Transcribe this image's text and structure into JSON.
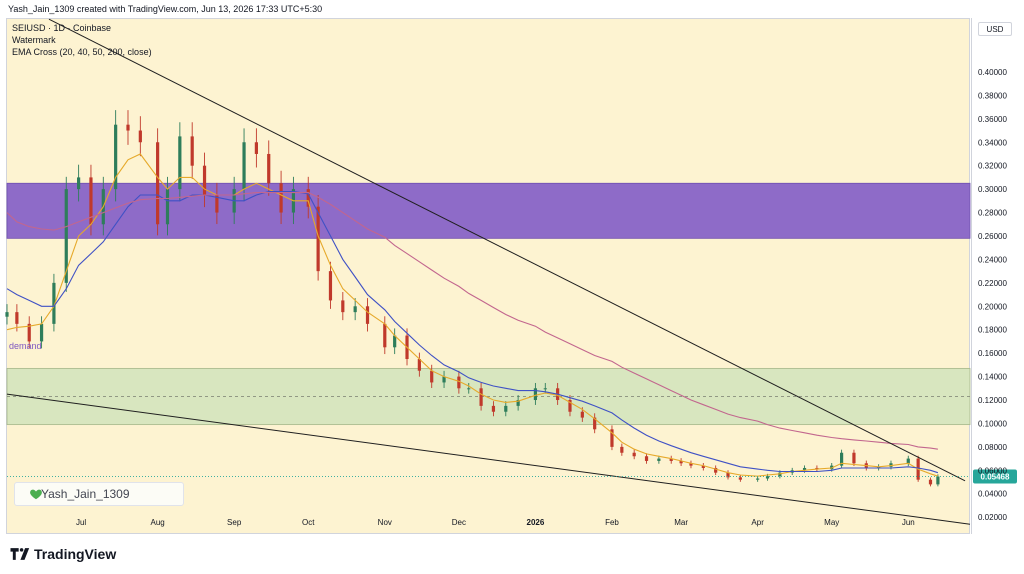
{
  "header": {
    "created_line": "Yash_Jain_1309 created with TradingView.com, Jun 13, 2026 17:33 UTC+5:30"
  },
  "legend": {
    "symbol_line": "SEIUSD · 1D · Coinbase",
    "watermark_label": "Watermark",
    "indicator_line": "EMA Cross (20, 40, 50, 200, close)"
  },
  "price_axis": {
    "currency": "USD",
    "last_price": "0.05468"
  },
  "zones": {
    "demand_label": "demand"
  },
  "watermark": {
    "text": "Yash_Jain_1309",
    "icon": "green-heart-icon"
  },
  "footer": {
    "brand": "TradingView",
    "brand_icon": "tradingview-logo-icon"
  },
  "colors": {
    "background": "#fdf3d1",
    "supply_zone": "#8e6bc8",
    "demand_zone": "#d8e6bf",
    "candle_up": "#2e7d5b",
    "candle_down": "#c0392b",
    "ema_fast": "#e6a92a",
    "ema_mid": "#3f51c5",
    "ema_slow": "#c2668e",
    "last_price_badge": "#26a69a"
  },
  "chart_data": {
    "type": "candlestick",
    "title": "SEIUSD · 1D · Coinbase",
    "y_ticks": [
      "0.40000",
      "0.38000",
      "0.36000",
      "0.34000",
      "0.32000",
      "0.30000",
      "0.28000",
      "0.26000",
      "0.24000",
      "0.22000",
      "0.20000",
      "0.18000",
      "0.16000",
      "0.14000",
      "0.12000",
      "0.10000",
      "0.08000",
      "0.06000",
      "0.04000",
      "0.02000"
    ],
    "y_tick_values": [
      0.4,
      0.38,
      0.36,
      0.34,
      0.32,
      0.3,
      0.28,
      0.26,
      0.24,
      0.22,
      0.2,
      0.18,
      0.16,
      0.14,
      0.12,
      0.1,
      0.08,
      0.06,
      0.04,
      0.02
    ],
    "ylim": [
      0.0065,
      0.4452
    ],
    "x_ticks": [
      "Jul",
      "Aug",
      "Sep",
      "Oct",
      "Nov",
      "Dec",
      "2026",
      "Feb",
      "Mar",
      "Apr",
      "May",
      "Jun"
    ],
    "x_tick_dates": [
      "2025-07-01",
      "2025-08-01",
      "2025-09-01",
      "2025-10-01",
      "2025-11-01",
      "2025-12-01",
      "2026-01-01",
      "2026-02-01",
      "2026-03-01",
      "2026-04-01",
      "2026-05-01",
      "2026-06-01"
    ],
    "x_range": [
      "2025-06-01",
      "2026-06-26"
    ],
    "zones": [
      {
        "name": "supply",
        "from": 0.258,
        "to": 0.305
      },
      {
        "name": "demand",
        "from": 0.099,
        "to": 0.147,
        "midline": 0.123
      }
    ],
    "trendlines": [
      {
        "name": "upper",
        "from": [
          "2025-06-18",
          0.445
        ],
        "to": [
          "2026-06-24",
          0.051
        ]
      },
      {
        "name": "lower",
        "from": [
          "2025-06-01",
          0.125
        ],
        "to": [
          "2026-06-26",
          0.014
        ]
      }
    ],
    "series": [
      {
        "name": "price",
        "dates": [
          "2025-06-01",
          "2025-06-05",
          "2025-06-10",
          "2025-06-15",
          "2025-06-20",
          "2025-06-25",
          "2025-06-30",
          "2025-07-05",
          "2025-07-10",
          "2025-07-15",
          "2025-07-20",
          "2025-07-25",
          "2025-08-01",
          "2025-08-05",
          "2025-08-10",
          "2025-08-15",
          "2025-08-20",
          "2025-08-25",
          "2025-09-01",
          "2025-09-05",
          "2025-09-10",
          "2025-09-15",
          "2025-09-20",
          "2025-09-25",
          "2025-10-01",
          "2025-10-05",
          "2025-10-10",
          "2025-10-15",
          "2025-10-20",
          "2025-10-25",
          "2025-11-01",
          "2025-11-05",
          "2025-11-10",
          "2025-11-15",
          "2025-11-20",
          "2025-11-25",
          "2025-12-01",
          "2025-12-05",
          "2025-12-10",
          "2025-12-15",
          "2025-12-20",
          "2025-12-25",
          "2026-01-01",
          "2026-01-05",
          "2026-01-10",
          "2026-01-15",
          "2026-01-20",
          "2026-01-25",
          "2026-02-01",
          "2026-02-05",
          "2026-02-10",
          "2026-02-15",
          "2026-02-20",
          "2026-02-25",
          "2026-03-01",
          "2026-03-05",
          "2026-03-10",
          "2026-03-15",
          "2026-03-20",
          "2026-03-25",
          "2026-04-01",
          "2026-04-05",
          "2026-04-10",
          "2026-04-15",
          "2026-04-20",
          "2026-04-25",
          "2026-05-01",
          "2026-05-05",
          "2026-05-10",
          "2026-05-15",
          "2026-05-20",
          "2026-05-25",
          "2026-06-01",
          "2026-06-05",
          "2026-06-10",
          "2026-06-13"
        ],
        "close": [
          0.195,
          0.185,
          0.17,
          0.185,
          0.22,
          0.3,
          0.31,
          0.27,
          0.3,
          0.355,
          0.35,
          0.34,
          0.27,
          0.3,
          0.345,
          0.32,
          0.295,
          0.28,
          0.3,
          0.34,
          0.33,
          0.305,
          0.28,
          0.3,
          0.285,
          0.23,
          0.205,
          0.195,
          0.2,
          0.185,
          0.165,
          0.175,
          0.155,
          0.145,
          0.135,
          0.14,
          0.13,
          0.13,
          0.115,
          0.11,
          0.115,
          0.12,
          0.13,
          0.13,
          0.12,
          0.11,
          0.105,
          0.095,
          0.08,
          0.075,
          0.072,
          0.068,
          0.07,
          0.068,
          0.066,
          0.064,
          0.062,
          0.058,
          0.054,
          0.052,
          0.053,
          0.055,
          0.058,
          0.06,
          0.062,
          0.061,
          0.064,
          0.075,
          0.066,
          0.062,
          0.063,
          0.066,
          0.07,
          0.052,
          0.048,
          0.05468
        ]
      },
      {
        "name": "EMA 20",
        "values": [
          0.18,
          0.182,
          0.183,
          0.185,
          0.2,
          0.23,
          0.26,
          0.27,
          0.285,
          0.31,
          0.325,
          0.33,
          0.31,
          0.3,
          0.31,
          0.31,
          0.3,
          0.295,
          0.295,
          0.3,
          0.305,
          0.3,
          0.295,
          0.29,
          0.29,
          0.26,
          0.235,
          0.215,
          0.205,
          0.195,
          0.185,
          0.175,
          0.165,
          0.155,
          0.145,
          0.14,
          0.136,
          0.132,
          0.125,
          0.12,
          0.118,
          0.119,
          0.124,
          0.126,
          0.124,
          0.118,
          0.112,
          0.104,
          0.092,
          0.084,
          0.078,
          0.074,
          0.072,
          0.07,
          0.068,
          0.066,
          0.064,
          0.061,
          0.058,
          0.056,
          0.055,
          0.056,
          0.057,
          0.059,
          0.06,
          0.061,
          0.062,
          0.066,
          0.065,
          0.064,
          0.063,
          0.064,
          0.066,
          0.061,
          0.057,
          0.055
        ]
      },
      {
        "name": "EMA 50",
        "values": [
          0.215,
          0.21,
          0.205,
          0.2,
          0.2,
          0.215,
          0.235,
          0.245,
          0.255,
          0.27,
          0.285,
          0.295,
          0.295,
          0.29,
          0.29,
          0.295,
          0.295,
          0.293,
          0.29,
          0.29,
          0.295,
          0.298,
          0.298,
          0.298,
          0.296,
          0.28,
          0.26,
          0.24,
          0.225,
          0.21,
          0.197,
          0.187,
          0.177,
          0.167,
          0.158,
          0.15,
          0.144,
          0.139,
          0.135,
          0.132,
          0.13,
          0.128,
          0.128,
          0.127,
          0.125,
          0.122,
          0.119,
          0.115,
          0.109,
          0.103,
          0.096,
          0.09,
          0.085,
          0.081,
          0.078,
          0.075,
          0.072,
          0.069,
          0.066,
          0.063,
          0.061,
          0.06,
          0.059,
          0.059,
          0.059,
          0.059,
          0.06,
          0.062,
          0.062,
          0.062,
          0.062,
          0.062,
          0.063,
          0.062,
          0.06,
          0.058
        ]
      },
      {
        "name": "EMA 200",
        "values": [
          0.28,
          0.272,
          0.268,
          0.266,
          0.265,
          0.268,
          0.272,
          0.276,
          0.28,
          0.284,
          0.288,
          0.291,
          0.292,
          0.292,
          0.293,
          0.294,
          0.295,
          0.295,
          0.295,
          0.296,
          0.297,
          0.297,
          0.297,
          0.297,
          0.297,
          0.293,
          0.287,
          0.28,
          0.273,
          0.266,
          0.259,
          0.252,
          0.245,
          0.238,
          0.231,
          0.224,
          0.217,
          0.211,
          0.205,
          0.199,
          0.193,
          0.188,
          0.183,
          0.178,
          0.173,
          0.168,
          0.163,
          0.158,
          0.153,
          0.148,
          0.143,
          0.138,
          0.133,
          0.128,
          0.124,
          0.12,
          0.116,
          0.112,
          0.108,
          0.105,
          0.102,
          0.099,
          0.096,
          0.094,
          0.092,
          0.09,
          0.088,
          0.087,
          0.086,
          0.085,
          0.084,
          0.083,
          0.082,
          0.08,
          0.079,
          0.078
        ]
      }
    ]
  }
}
